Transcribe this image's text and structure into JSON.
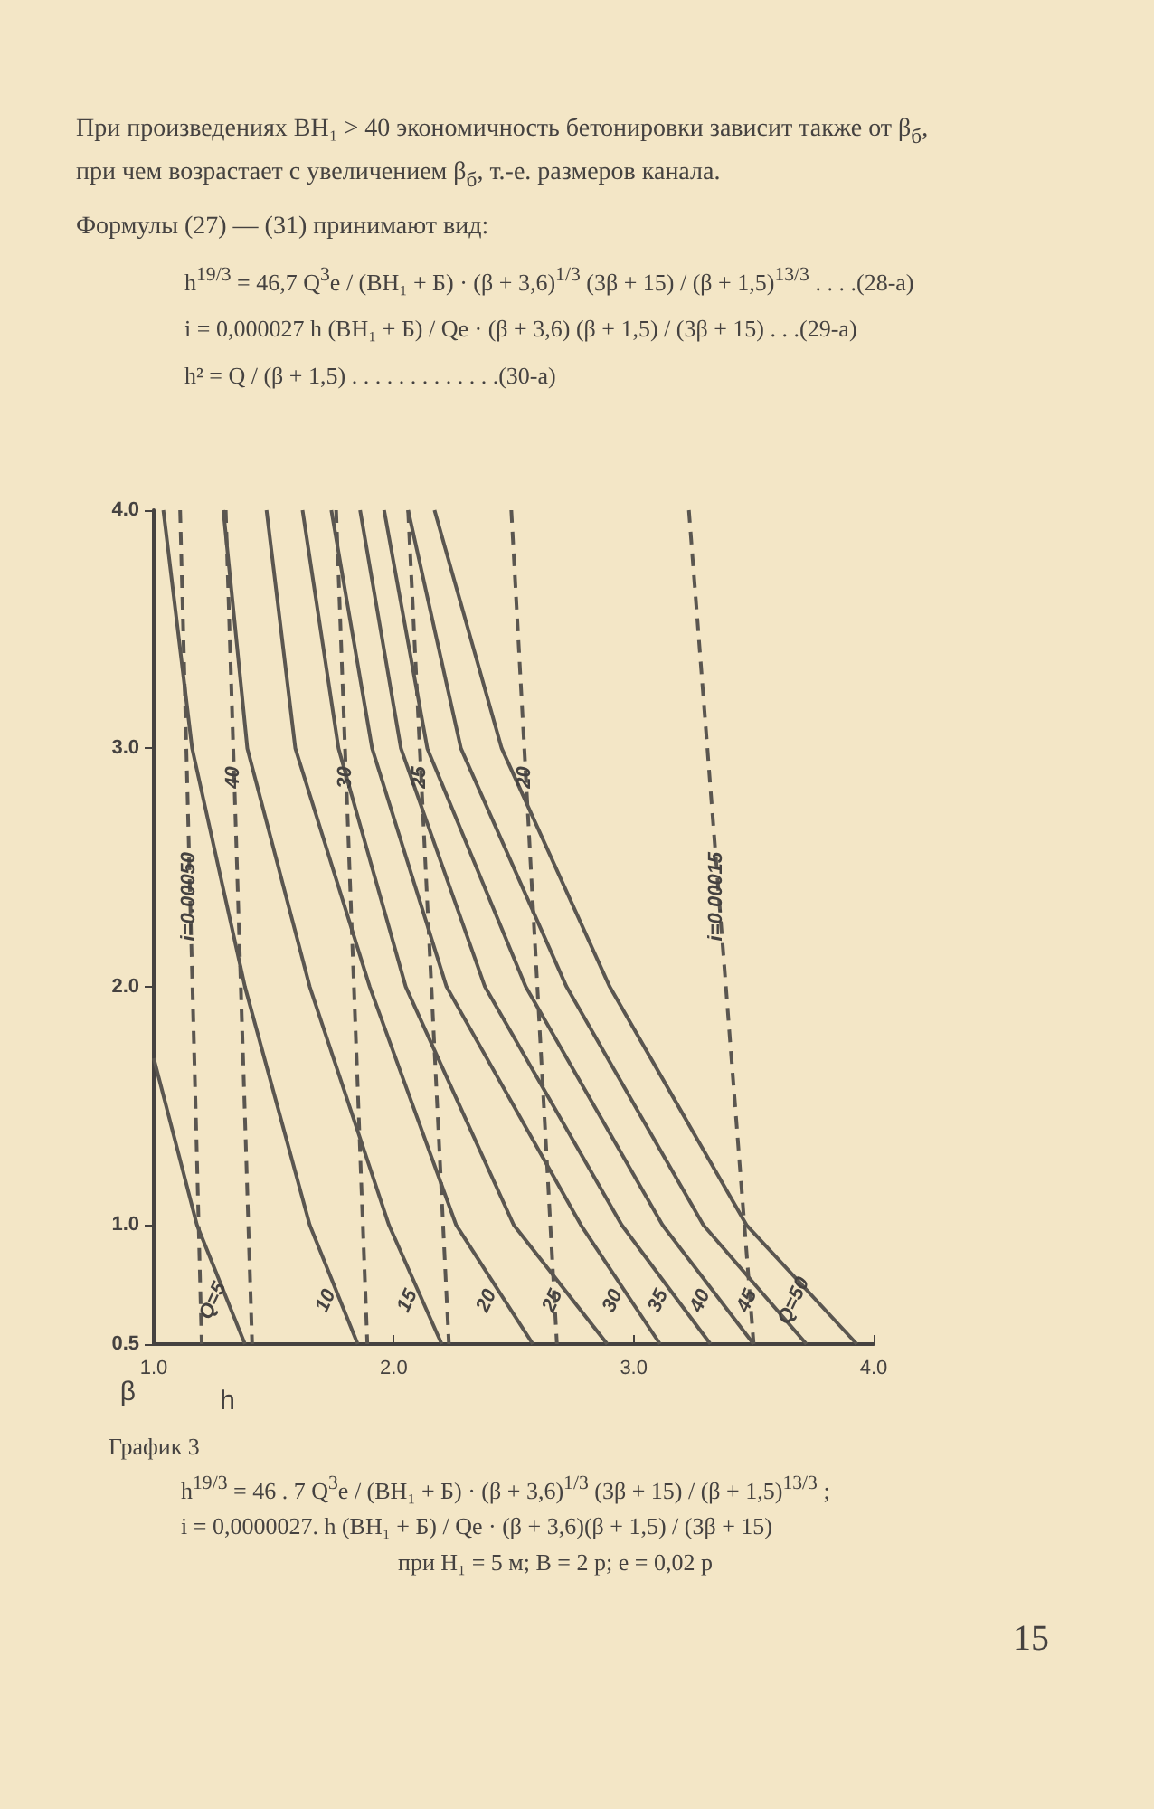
{
  "chart_data": {
    "type": "line",
    "title": "График 3",
    "xlabel": "h",
    "ylabel": "β",
    "xlim": [
      1,
      4
    ],
    "ylim": [
      0.5,
      4
    ],
    "xticks": [
      {
        "value": 1,
        "label": "1.0"
      },
      {
        "value": 2,
        "label": "2.0"
      },
      {
        "value": 3,
        "label": "3.0"
      },
      {
        "value": 4,
        "label": "4.0"
      }
    ],
    "yticks": [
      0.5,
      {
        "value": 1,
        "label": "1.0"
      },
      {
        "value": 2,
        "label": "2.0"
      },
      {
        "value": 3,
        "label": "3.0"
      },
      {
        "value": 4,
        "label": "4.0"
      }
    ],
    "marker": "none",
    "line_style": "solid",
    "annotations": [
      "При произведениях BH₁ > 40 экономичность бетонировки зависит также от β$_{б}$, при чем возрастает с увеличением β$_{б}$, т.-е. размеров канала.",
      "Формулы (27) — (31) принимают вид:",
      "h$^{19/3}$ = 46,7 Q$^{3}$e / (BH₁ + Б) · (β + 3,6)$^{1/3}$ (3β + 15) / (β + 1,5)$^{13/3}$ . . . .(28-a)",
      "i = 0,000027 h (BH₁ + Б) / Qe · (β + 3,6) (β + 1,5) / (3β + 15) . . .(29-a)",
      "h² = Q / (β + 1,5) . . . . . . . . . . . . .(30-a)",
      "h$^{19/3}$ = 46 . 7 Q$^{3}$e / (BH₁ + Б) · (β + 3,6)$^{1/3}$ (3β + 15) / (β + 1,5)$^{13/3}$ ;",
      "i = 0,0000027. h (BH₁ + Б) / Qe · (β + 3,6)(β + 1,5) / (3β + 15)",
      "при H₁ = 5 м; B = 2 р; e = 0,02 р",
      "15"
    ],
    "series": [
      {
        "name": "Q=5",
        "color": "#5a5650",
        "x": [
          1.0,
          1.18,
          1.38
        ],
        "values": [
          1.7,
          1.0,
          0.5
        ]
      },
      {
        "name": "10",
        "color": "#5a5650",
        "x": [
          1.04,
          1.16,
          1.38,
          1.65,
          1.85
        ],
        "values": [
          4,
          3,
          2,
          1,
          0.5
        ]
      },
      {
        "name": "15",
        "color": "#5a5650",
        "x": [
          1.29,
          1.39,
          1.65,
          1.98,
          2.2
        ],
        "values": [
          4,
          3,
          2,
          1,
          0.5
        ]
      },
      {
        "name": "20",
        "color": "#5a5650",
        "x": [
          1.47,
          1.59,
          1.9,
          2.26,
          2.58
        ],
        "values": [
          4,
          3,
          2,
          1,
          0.5
        ]
      },
      {
        "name": "25",
        "color": "#5a5650",
        "x": [
          1.62,
          1.77,
          2.05,
          2.5,
          2.89
        ],
        "values": [
          4,
          3,
          2,
          1,
          0.5
        ]
      },
      {
        "name": "30",
        "color": "#5a5650",
        "x": [
          1.74,
          1.91,
          2.22,
          2.78,
          3.11
        ],
        "values": [
          4,
          3,
          2,
          1,
          0.5
        ]
      },
      {
        "name": "35",
        "color": "#5a5650",
        "x": [
          1.86,
          2.03,
          2.38,
          2.95,
          3.32
        ],
        "values": [
          4,
          3,
          2,
          1,
          0.5
        ]
      },
      {
        "name": "40",
        "color": "#5a5650",
        "x": [
          1.96,
          2.14,
          2.55,
          3.12,
          3.5
        ],
        "values": [
          4,
          3,
          2,
          1,
          0.5
        ]
      },
      {
        "name": "45",
        "color": "#5a5650",
        "x": [
          2.06,
          2.28,
          2.72,
          3.29,
          3.72
        ],
        "values": [
          4,
          3,
          2,
          1,
          0.5
        ]
      },
      {
        "name": "Q=50",
        "color": "#5a5650",
        "x": [
          2.17,
          2.45,
          2.9,
          3.47,
          3.93
        ],
        "values": [
          4,
          3,
          2,
          1,
          0.5
        ]
      },
      {
        "name": "i=0.00050",
        "color": "#5a5650",
        "line_style": "dashed",
        "x": [
          1.11,
          1.2
        ],
        "values": [
          4,
          0.5
        ]
      },
      {
        "name": "40",
        "color": "#5a5650",
        "line_style": "dashed",
        "x": [
          1.3,
          1.41
        ],
        "values": [
          4,
          0.5
        ]
      },
      {
        "name": "30",
        "color": "#5a5650",
        "line_style": "dashed",
        "x": [
          1.76,
          1.89
        ],
        "values": [
          4,
          0.5
        ]
      },
      {
        "name": "25",
        "color": "#5a5650",
        "line_style": "dashed",
        "x": [
          2.06,
          2.23
        ],
        "values": [
          4,
          0.5
        ]
      },
      {
        "name": "20",
        "color": "#5a5650",
        "line_style": "dashed",
        "x": [
          2.49,
          2.68
        ],
        "values": [
          4,
          0.5
        ]
      },
      {
        "name": "i=0.00015",
        "color": "#5a5650",
        "line_style": "dashed",
        "x": [
          3.23,
          3.5
        ],
        "values": [
          4,
          0.5
        ]
      }
    ]
  }
}
